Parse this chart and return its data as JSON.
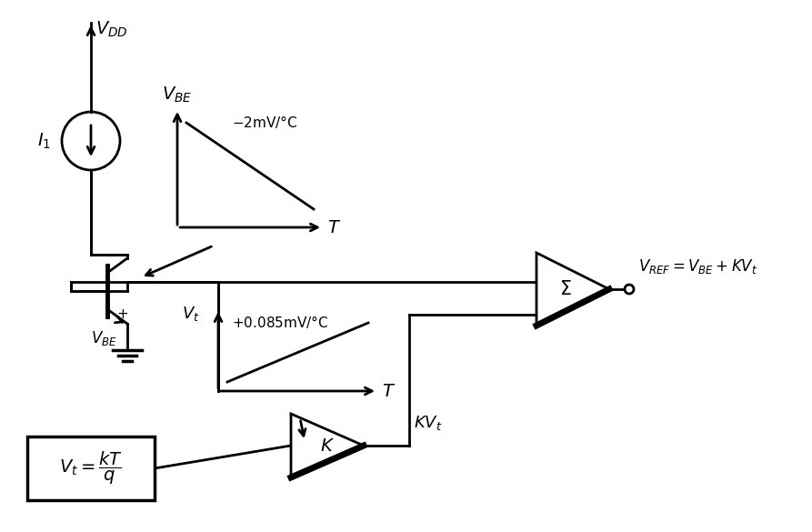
{
  "bg_color": "#ffffff",
  "line_color": "#000000",
  "line_width": 2.0,
  "fig_width": 8.93,
  "fig_height": 5.85,
  "title": ""
}
